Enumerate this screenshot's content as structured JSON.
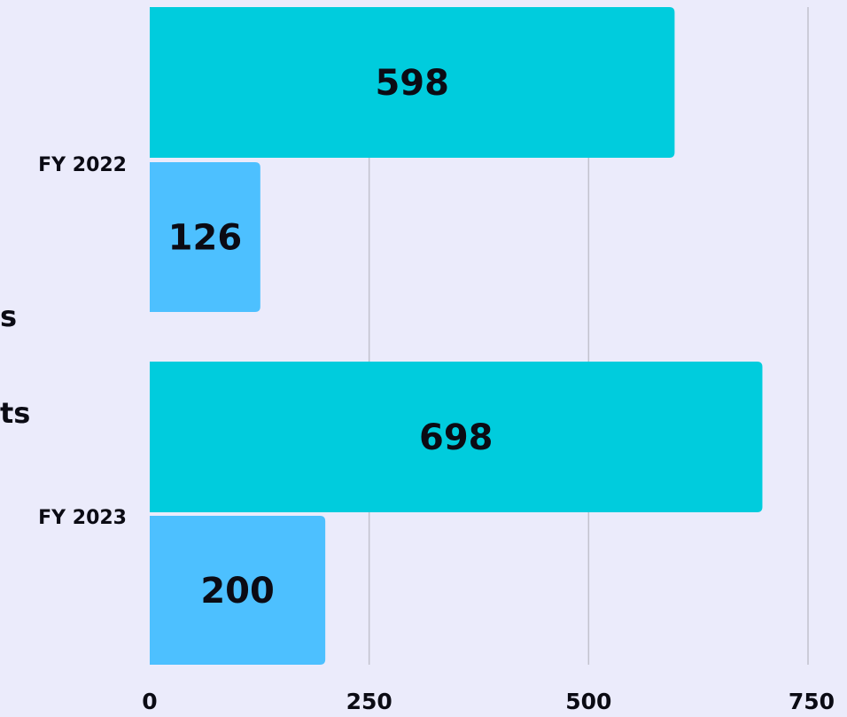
{
  "chart_data": {
    "type": "bar",
    "orientation": "horizontal",
    "categories": [
      "FY 2022",
      "FY 2023"
    ],
    "series": [
      {
        "values": [
          598,
          698
        ],
        "color": "#00CCDD"
      },
      {
        "values": [
          126,
          200
        ],
        "color": "#4DC0FF"
      }
    ],
    "xlim": [
      0,
      750
    ],
    "xticks": [
      0,
      250,
      500,
      750
    ],
    "xtick_labels": [
      "0",
      "250",
      "500",
      "750"
    ],
    "grid": "vertical",
    "data_labels": true,
    "legend_fragments": [
      "s",
      "ts"
    ],
    "title": "",
    "xlabel": "",
    "ylabel": ""
  }
}
